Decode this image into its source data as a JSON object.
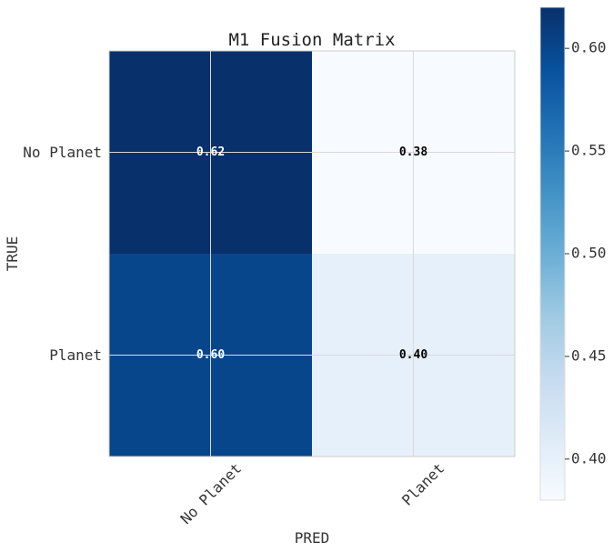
{
  "chart_data": {
    "type": "heatmap",
    "title": "M1 Fusion Matrix",
    "xlabel": "PRED",
    "ylabel": "TRUE",
    "x_categories": [
      "No Planet",
      "Planet"
    ],
    "y_categories": [
      "No Planet",
      "Planet"
    ],
    "values": [
      [
        0.62,
        0.38
      ],
      [
        0.6,
        0.4
      ]
    ],
    "colormap": "Blues",
    "colorbar": {
      "min": 0.38,
      "max": 0.62,
      "ticks": [
        0.4,
        0.45,
        0.5,
        0.55,
        0.6
      ],
      "tick_labels": [
        "0.40",
        "0.45",
        "0.50",
        "0.55",
        "0.60"
      ]
    },
    "grid": true,
    "text_colors": {
      "dark": "#ffffff",
      "light": "#000000"
    }
  }
}
